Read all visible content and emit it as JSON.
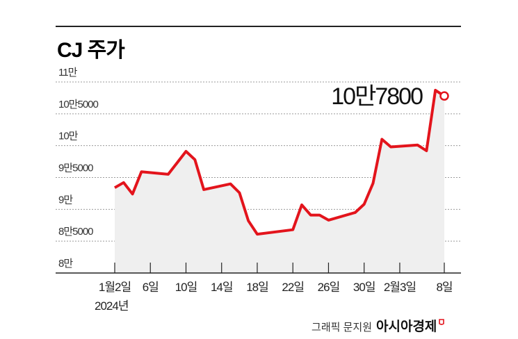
{
  "chart_data": {
    "type": "area",
    "title": "CJ 주가",
    "xlabel": "",
    "ylabel": "",
    "ylim": [
      80000,
      110000
    ],
    "y_ticks": [
      {
        "value": 110000,
        "label": "11만"
      },
      {
        "value": 105000,
        "label": "10만5000"
      },
      {
        "value": 100000,
        "label": "10만"
      },
      {
        "value": 95000,
        "label": "9만5000"
      },
      {
        "value": 90000,
        "label": "9만"
      },
      {
        "value": 85000,
        "label": "8만5000"
      },
      {
        "value": 80000,
        "label": "8만"
      }
    ],
    "x_ticks": [
      {
        "date": "2024-01-02",
        "label": "1월2일"
      },
      {
        "date": "2024-01-06",
        "label": "6일"
      },
      {
        "date": "2024-01-10",
        "label": "10일"
      },
      {
        "date": "2024-01-14",
        "label": "14일"
      },
      {
        "date": "2024-01-18",
        "label": "18일"
      },
      {
        "date": "2024-01-22",
        "label": "22일"
      },
      {
        "date": "2024-01-26",
        "label": "26일"
      },
      {
        "date": "2024-01-30",
        "label": "30일"
      },
      {
        "date": "2024-02-03",
        "label": "2월3일"
      },
      {
        "date": "2024-02-08",
        "label": "8일"
      }
    ],
    "year_label": "2024년",
    "grid": true,
    "series": [
      {
        "name": "CJ 주가",
        "color": "#e3141c",
        "points": [
          {
            "date": "2024-01-02",
            "value": 93400
          },
          {
            "date": "2024-01-03",
            "value": 94200
          },
          {
            "date": "2024-01-04",
            "value": 92400
          },
          {
            "date": "2024-01-05",
            "value": 95900
          },
          {
            "date": "2024-01-08",
            "value": 95500
          },
          {
            "date": "2024-01-10",
            "value": 99100
          },
          {
            "date": "2024-01-11",
            "value": 97800
          },
          {
            "date": "2024-01-12",
            "value": 93100
          },
          {
            "date": "2024-01-15",
            "value": 94000
          },
          {
            "date": "2024-01-16",
            "value": 92600
          },
          {
            "date": "2024-01-17",
            "value": 88200
          },
          {
            "date": "2024-01-18",
            "value": 86100
          },
          {
            "date": "2024-01-22",
            "value": 86800
          },
          {
            "date": "2024-01-23",
            "value": 90700
          },
          {
            "date": "2024-01-24",
            "value": 89100
          },
          {
            "date": "2024-01-25",
            "value": 89100
          },
          {
            "date": "2024-01-26",
            "value": 88300
          },
          {
            "date": "2024-01-29",
            "value": 89500
          },
          {
            "date": "2024-01-30",
            "value": 90800
          },
          {
            "date": "2024-01-31",
            "value": 94100
          },
          {
            "date": "2024-02-01",
            "value": 101000
          },
          {
            "date": "2024-02-02",
            "value": 99800
          },
          {
            "date": "2024-02-05",
            "value": 100100
          },
          {
            "date": "2024-02-06",
            "value": 99200
          },
          {
            "date": "2024-02-07",
            "value": 108700
          },
          {
            "date": "2024-02-08",
            "value": 107800
          }
        ]
      }
    ],
    "annotation": {
      "label": "10만7800",
      "date": "2024-02-08",
      "value": 107800
    },
    "fill_color": "#efefef",
    "credit": "그래픽 문지원",
    "brand": "아시아경제",
    "brand_color": "#e3141c"
  }
}
